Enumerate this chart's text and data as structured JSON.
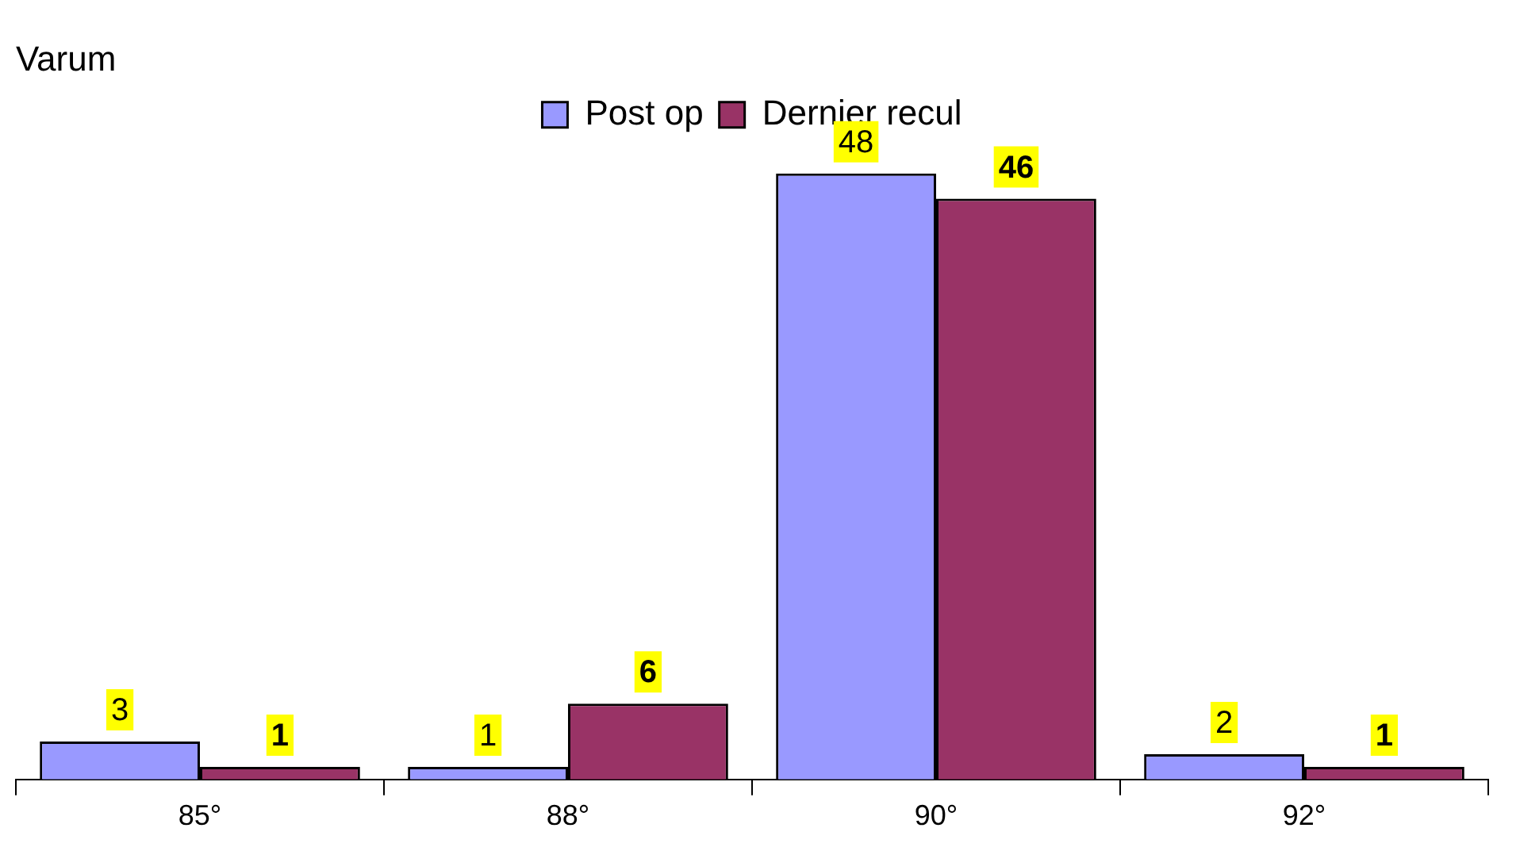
{
  "chart_data": {
    "type": "bar",
    "title": "Varum",
    "categories": [
      "85°",
      "88°",
      "90°",
      "92°"
    ],
    "series": [
      {
        "name": "Post op",
        "color": "#9999ff",
        "values": [
          3,
          1,
          48,
          2
        ]
      },
      {
        "name": "Dernier recul",
        "color": "#993366",
        "values": [
          1,
          6,
          46,
          1
        ]
      }
    ],
    "data_labels": true,
    "legend": "top",
    "grid": false
  }
}
